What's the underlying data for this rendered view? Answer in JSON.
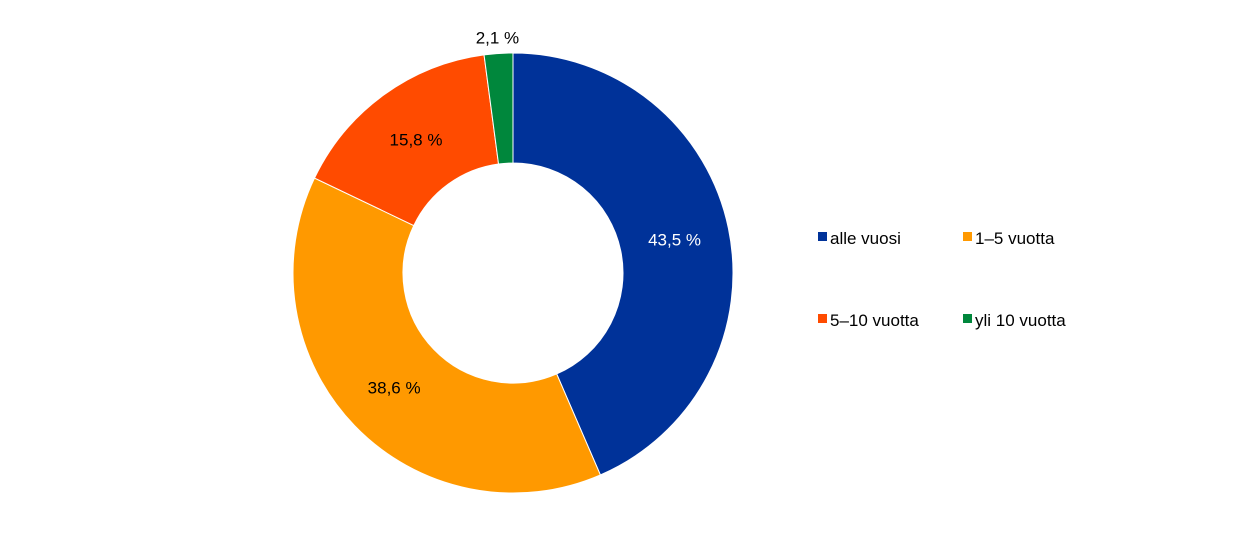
{
  "chart_data": {
    "type": "pie",
    "variant": "donut",
    "title": "",
    "categories": [
      "alle vuosi",
      "1–5 vuotta",
      "5–10 vuotta",
      "yli 10 vuotta"
    ],
    "values": [
      43.5,
      38.6,
      15.8,
      2.1
    ],
    "data_labels": [
      "43,5 %",
      "38,6 %",
      "15,8 %",
      "2,1 %"
    ],
    "colors": [
      "#003299",
      "#FF9900",
      "#FF4B00",
      "#00873C"
    ],
    "start_angle": "12 o'clock",
    "direction": "clockwise",
    "legend": {
      "placement": "right",
      "entries": [
        "alle vuosi",
        "1–5 vuotta",
        "5–10 vuotta",
        "yli 10 vuotta"
      ]
    }
  }
}
